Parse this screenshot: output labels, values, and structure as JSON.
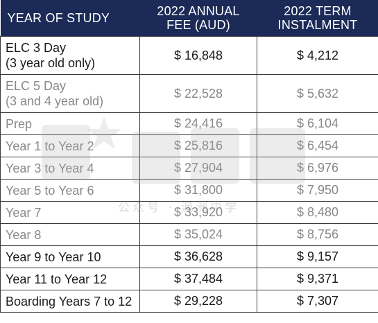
{
  "table": {
    "headers": {
      "year": "YEAR OF STUDY",
      "fee_line1": "2022 ANNUAL",
      "fee_line2": "FEE (AUD)",
      "inst_line1": "2022 TERM",
      "inst_line2": "INSTALMENT"
    },
    "rows": [
      {
        "year_line1": "ELC 3 Day",
        "year_line2": "(3 year old only)",
        "fee": "$ 16,848",
        "inst": "$ 4,212"
      },
      {
        "year_line1": "ELC 5 Day",
        "year_line2": "(3 and 4 year old)",
        "fee": "$ 22,528",
        "inst": "$ 5,632"
      },
      {
        "year": "Prep",
        "fee": "$ 24,416",
        "inst": "$ 6,104"
      },
      {
        "year": "Year 1 to Year 2",
        "fee": "$ 25,816",
        "inst": "$ 6,454"
      },
      {
        "year": "Year 3 to Year 4",
        "fee": "$ 27,904",
        "inst": "$ 6,976"
      },
      {
        "year": "Year 5 to Year 6",
        "fee": "$ 31,800",
        "inst": "$ 7,950"
      },
      {
        "year": "Year 7",
        "fee": "$ 33,920",
        "inst": "$ 8,480"
      },
      {
        "year": "Year 8",
        "fee": "$ 35,024",
        "inst": "$ 8,756"
      },
      {
        "year": "Year 9 to Year 10",
        "fee": "$ 36,628",
        "inst": "$ 9,157"
      },
      {
        "year": "Year 11 to Year 12",
        "fee": "$ 37,484",
        "inst": "$ 9,371"
      },
      {
        "year": "Boarding Years 7 to 12",
        "fee": "$ 29,228",
        "inst": "$ 7,307"
      }
    ]
  },
  "watermark": {
    "text": "公众号 · 澳洲中学"
  },
  "colors": {
    "header_bg": "#1b2a57",
    "header_text": "#ffffff",
    "border": "#3a3a3a",
    "text": "#1a1a1a",
    "dim_text": "#888888"
  }
}
